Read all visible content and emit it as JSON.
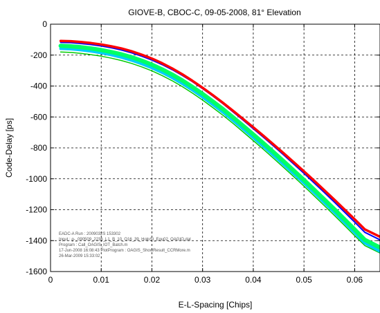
{
  "chart_data": {
    "type": "line",
    "title": "GIOVE-B, CBOC-C, 09-05-2008, 81° Elevation",
    "xlabel": "E-L-Spacing [Chips]",
    "ylabel": "Code-Delay [ps]",
    "xlim": [
      0,
      0.065
    ],
    "ylim": [
      -1600,
      0
    ],
    "x_ticks": [
      0,
      0.01,
      0.02,
      0.03,
      0.04,
      0.05,
      0.06
    ],
    "x_tick_labels": [
      "0",
      "0.01",
      "0.02",
      "0.03",
      "0.04",
      "0.05",
      "0.06"
    ],
    "y_ticks": [
      0,
      -200,
      -400,
      -600,
      -800,
      -1000,
      -1200,
      -1400,
      -1600
    ],
    "y_tick_labels": [
      "0",
      "-200",
      "-400",
      "-600",
      "-800",
      "-1000",
      "-1200",
      "-1400",
      "-1600"
    ],
    "grid": true,
    "x": [
      0.002,
      0.004,
      0.006,
      0.008,
      0.01,
      0.012,
      0.014,
      0.016,
      0.018,
      0.02,
      0.022,
      0.024,
      0.026,
      0.028,
      0.03,
      0.032,
      0.034,
      0.036,
      0.038,
      0.04,
      0.042,
      0.044,
      0.046,
      0.048,
      0.05,
      0.052,
      0.054,
      0.056,
      0.058,
      0.06,
      0.062,
      0.065
    ],
    "series": [
      {
        "color": "#ff0000",
        "width": 3.5,
        "values": [
          -108,
          -110,
          -115,
          -122,
          -131,
          -143,
          -157,
          -175,
          -197,
          -222,
          -252,
          -286,
          -324,
          -366,
          -411,
          -458,
          -508,
          -560,
          -613,
          -667,
          -722,
          -778,
          -835,
          -893,
          -952,
          -1012,
          -1073,
          -1135,
          -1198,
          -1262,
          -1327,
          -1375
        ]
      },
      {
        "color": "#0000ff",
        "width": 2.0,
        "values": [
          -118,
          -120,
          -125,
          -132,
          -141,
          -153,
          -167,
          -185,
          -207,
          -232,
          -261,
          -294,
          -331,
          -372,
          -417,
          -464,
          -514,
          -567,
          -621,
          -676,
          -731,
          -788,
          -846,
          -905,
          -965,
          -1026,
          -1088,
          -1151,
          -1215,
          -1280,
          -1346,
          -1395
        ]
      },
      {
        "color": "#00ff66",
        "width": 6.0,
        "values": [
          -140,
          -143,
          -149,
          -157,
          -167,
          -180,
          -195,
          -214,
          -236,
          -262,
          -292,
          -326,
          -364,
          -406,
          -451,
          -499,
          -549,
          -602,
          -657,
          -713,
          -770,
          -828,
          -887,
          -947,
          -1008,
          -1070,
          -1133,
          -1197,
          -1262,
          -1328,
          -1395,
          -1445
        ]
      },
      {
        "color": "#00ccff",
        "width": 4.0,
        "values": [
          -158,
          -161,
          -167,
          -175,
          -186,
          -199,
          -215,
          -234,
          -257,
          -283,
          -313,
          -347,
          -385,
          -427,
          -472,
          -520,
          -570,
          -623,
          -678,
          -734,
          -791,
          -849,
          -908,
          -968,
          -1029,
          -1091,
          -1154,
          -1218,
          -1283,
          -1349,
          -1416,
          -1470
        ]
      },
      {
        "color": "#00cc00",
        "width": 1.5,
        "values": [
          -180,
          -183,
          -189,
          -197,
          -207,
          -220,
          -235,
          -254,
          -276,
          -302,
          -332,
          -366,
          -404,
          -446,
          -491,
          -539,
          -589,
          -642,
          -697,
          -753,
          -810,
          -868,
          -927,
          -987,
          -1048,
          -1110,
          -1173,
          -1237,
          -1302,
          -1368,
          -1432,
          -1480
        ]
      }
    ]
  },
  "annotation": {
    "lines": [
      "EADC-A Run : 2009032S 153302",
      "Input : g-_090509_2236_L1_B_10_O16_39_HolpSt_Equ02_OAGIO.dat",
      "Program : Call_OAGIS_IOT_Batch.m",
      "17-Jun-2008 16:08:43 PlotProgram : OAGIS_ShowResult_CCRMore.m",
      "26-Mar-2009 15:33:02"
    ]
  }
}
